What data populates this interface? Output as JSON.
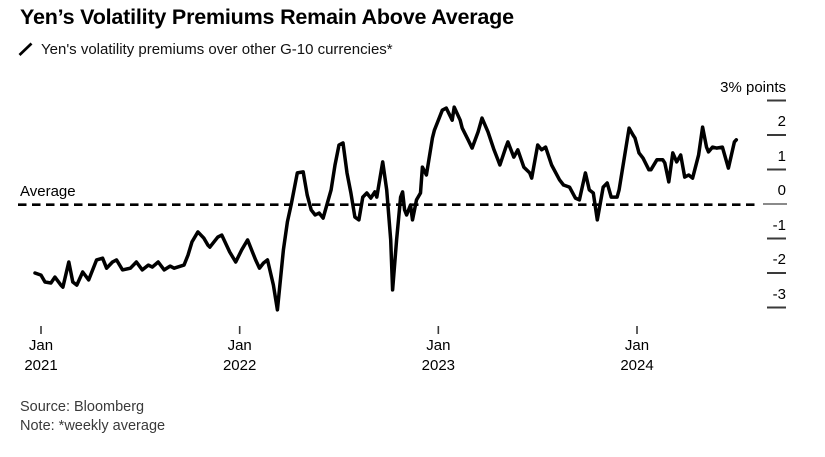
{
  "page": {
    "background": "#ffffff",
    "text_color": "#000000"
  },
  "footer": {
    "source_text": "Source: Bloomberg",
    "note_text": "Note: *weekly average"
  },
  "colors": {
    "series_line": "#000000",
    "average_line": "#000000",
    "axis_tick": "#3a3a3a",
    "zero_tick": "#8a8a8a",
    "background": "#ffffff"
  },
  "chart_data": {
    "type": "line",
    "title": "Yen’s Volatility Premiums Remain Above Average",
    "legend": "Yen's volatility premiums over other G-10 currencies*",
    "legend_position": "top-left",
    "grid": false,
    "xlabel": "",
    "ylabel": "% points",
    "y_axis_top_label": "3% points",
    "ylim": [
      -3.5,
      3.2
    ],
    "xlim_years": [
      2020.95,
      2024.55
    ],
    "y_ticks": [
      {
        "value": 3,
        "label": "3% points"
      },
      {
        "value": 2,
        "label": "2"
      },
      {
        "value": 1,
        "label": "1"
      },
      {
        "value": 0,
        "label": "0"
      },
      {
        "value": -1,
        "label": "-1"
      },
      {
        "value": -2,
        "label": "-2"
      },
      {
        "value": -3,
        "label": "-3"
      }
    ],
    "x_ticks": [
      {
        "t": 2021,
        "month": "Jan",
        "year": "2021"
      },
      {
        "t": 2022,
        "month": "Jan",
        "year": "2022"
      },
      {
        "t": 2023,
        "month": "Jan",
        "year": "2023"
      },
      {
        "t": 2024,
        "month": "Jan",
        "year": "2024"
      }
    ],
    "average_line": {
      "label": "Average",
      "value": -0.02
    },
    "series": [
      {
        "name": "Yen's volatility premiums over other G-10 currencies*",
        "color": "#000000",
        "points": [
          [
            2020.97,
            -2.0
          ],
          [
            2021.0,
            -2.06
          ],
          [
            2021.02,
            -2.26
          ],
          [
            2021.05,
            -2.29
          ],
          [
            2021.07,
            -2.12
          ],
          [
            2021.1,
            -2.35
          ],
          [
            2021.11,
            -2.41
          ],
          [
            2021.14,
            -1.68
          ],
          [
            2021.16,
            -2.26
          ],
          [
            2021.18,
            -2.35
          ],
          [
            2021.21,
            -1.97
          ],
          [
            2021.24,
            -2.2
          ],
          [
            2021.28,
            -1.62
          ],
          [
            2021.31,
            -1.57
          ],
          [
            2021.33,
            -1.86
          ],
          [
            2021.36,
            -1.68
          ],
          [
            2021.38,
            -1.62
          ],
          [
            2021.41,
            -1.91
          ],
          [
            2021.45,
            -1.86
          ],
          [
            2021.48,
            -1.68
          ],
          [
            2021.51,
            -1.91
          ],
          [
            2021.54,
            -1.77
          ],
          [
            2021.56,
            -1.83
          ],
          [
            2021.59,
            -1.68
          ],
          [
            2021.62,
            -1.91
          ],
          [
            2021.65,
            -1.8
          ],
          [
            2021.67,
            -1.86
          ],
          [
            2021.72,
            -1.77
          ],
          [
            2021.74,
            -1.48
          ],
          [
            2021.76,
            -1.1
          ],
          [
            2021.79,
            -0.81
          ],
          [
            2021.82,
            -0.99
          ],
          [
            2021.84,
            -1.19
          ],
          [
            2021.85,
            -1.25
          ],
          [
            2021.89,
            -0.96
          ],
          [
            2021.91,
            -0.9
          ],
          [
            2021.95,
            -1.39
          ],
          [
            2021.98,
            -1.68
          ],
          [
            2022.01,
            -1.33
          ],
          [
            2022.04,
            -1.04
          ],
          [
            2022.08,
            -1.62
          ],
          [
            2022.1,
            -1.86
          ],
          [
            2022.12,
            -1.71
          ],
          [
            2022.14,
            -1.62
          ],
          [
            2022.17,
            -2.35
          ],
          [
            2022.19,
            -3.07
          ],
          [
            2022.22,
            -1.33
          ],
          [
            2022.24,
            -0.52
          ],
          [
            2022.26,
            0.0
          ],
          [
            2022.29,
            0.9
          ],
          [
            2022.32,
            0.93
          ],
          [
            2022.34,
            0.26
          ],
          [
            2022.36,
            -0.17
          ],
          [
            2022.38,
            -0.32
          ],
          [
            2022.4,
            -0.26
          ],
          [
            2022.42,
            -0.41
          ],
          [
            2022.46,
            0.41
          ],
          [
            2022.48,
            1.13
          ],
          [
            2022.5,
            1.71
          ],
          [
            2022.52,
            1.77
          ],
          [
            2022.54,
            0.9
          ],
          [
            2022.56,
            0.32
          ],
          [
            2022.58,
            -0.38
          ],
          [
            2022.6,
            -0.46
          ],
          [
            2022.62,
            0.2
          ],
          [
            2022.64,
            0.32
          ],
          [
            2022.66,
            0.17
          ],
          [
            2022.68,
            0.35
          ],
          [
            2022.69,
            0.2
          ],
          [
            2022.72,
            1.22
          ],
          [
            2022.74,
            0.41
          ],
          [
            2022.76,
            -1.04
          ],
          [
            2022.77,
            -2.49
          ],
          [
            2022.79,
            -1.04
          ],
          [
            2022.81,
            0.2
          ],
          [
            2022.82,
            0.35
          ],
          [
            2022.83,
            -0.17
          ],
          [
            2022.84,
            -0.32
          ],
          [
            2022.86,
            -0.03
          ],
          [
            2022.87,
            -0.46
          ],
          [
            2022.89,
            0.12
          ],
          [
            2022.91,
            0.32
          ],
          [
            2022.92,
            1.07
          ],
          [
            2022.94,
            0.84
          ],
          [
            2022.97,
            1.91
          ],
          [
            2022.98,
            2.14
          ],
          [
            2023.02,
            2.72
          ],
          [
            2023.04,
            2.78
          ],
          [
            2023.07,
            2.43
          ],
          [
            2023.08,
            2.81
          ],
          [
            2023.11,
            2.43
          ],
          [
            2023.12,
            2.2
          ],
          [
            2023.15,
            1.86
          ],
          [
            2023.17,
            1.62
          ],
          [
            2023.2,
            2.09
          ],
          [
            2023.22,
            2.49
          ],
          [
            2023.25,
            2.09
          ],
          [
            2023.28,
            1.57
          ],
          [
            2023.3,
            1.28
          ],
          [
            2023.31,
            1.13
          ],
          [
            2023.34,
            1.65
          ],
          [
            2023.35,
            1.8
          ],
          [
            2023.38,
            1.36
          ],
          [
            2023.4,
            1.57
          ],
          [
            2023.43,
            1.07
          ],
          [
            2023.46,
            0.9
          ],
          [
            2023.47,
            0.75
          ],
          [
            2023.5,
            1.71
          ],
          [
            2023.52,
            1.57
          ],
          [
            2023.54,
            1.65
          ],
          [
            2023.57,
            1.13
          ],
          [
            2023.61,
            0.7
          ],
          [
            2023.63,
            0.55
          ],
          [
            2023.66,
            0.49
          ],
          [
            2023.69,
            0.17
          ],
          [
            2023.71,
            0.12
          ],
          [
            2023.74,
            0.9
          ],
          [
            2023.76,
            0.41
          ],
          [
            2023.78,
            0.32
          ],
          [
            2023.8,
            -0.46
          ],
          [
            2023.83,
            0.49
          ],
          [
            2023.85,
            0.61
          ],
          [
            2023.87,
            0.2
          ],
          [
            2023.9,
            0.2
          ],
          [
            2023.91,
            0.41
          ],
          [
            2023.96,
            2.2
          ],
          [
            2023.98,
            2.0
          ],
          [
            2023.99,
            1.91
          ],
          [
            2024.01,
            1.48
          ],
          [
            2024.03,
            1.33
          ],
          [
            2024.06,
            0.99
          ],
          [
            2024.07,
            0.99
          ],
          [
            2024.1,
            1.28
          ],
          [
            2024.13,
            1.28
          ],
          [
            2024.14,
            1.19
          ],
          [
            2024.16,
            0.64
          ],
          [
            2024.18,
            1.48
          ],
          [
            2024.2,
            1.22
          ],
          [
            2024.22,
            1.42
          ],
          [
            2024.24,
            0.78
          ],
          [
            2024.26,
            0.84
          ],
          [
            2024.28,
            0.75
          ],
          [
            2024.31,
            1.42
          ],
          [
            2024.33,
            2.23
          ],
          [
            2024.35,
            1.65
          ],
          [
            2024.36,
            1.51
          ],
          [
            2024.38,
            1.65
          ],
          [
            2024.4,
            1.62
          ],
          [
            2024.43,
            1.65
          ],
          [
            2024.46,
            1.04
          ],
          [
            2024.49,
            1.8
          ],
          [
            2024.5,
            1.86
          ]
        ]
      }
    ]
  }
}
